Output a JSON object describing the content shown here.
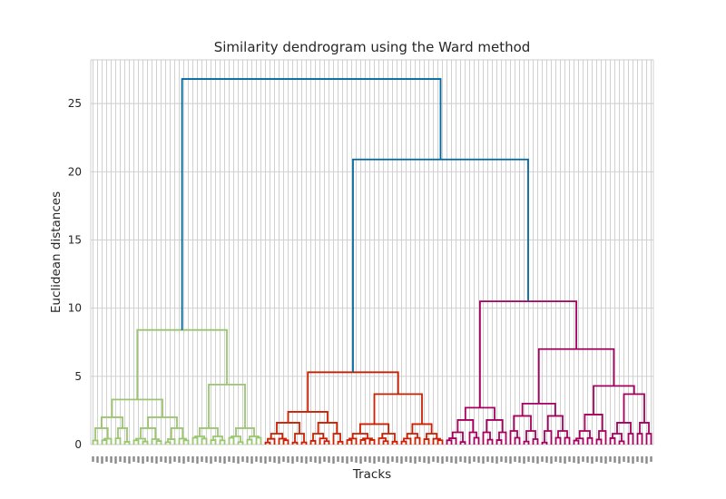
{
  "chart_data": {
    "type": "dendrogram",
    "title": "Similarity dendrogram using the Ward method",
    "xlabel": "Tracks",
    "ylabel": "Euclidean distances",
    "ylim": [
      0,
      28.2
    ],
    "yticks": [
      0,
      5,
      10,
      15,
      20,
      25
    ],
    "grid": true,
    "leaf_count": 124,
    "colors": {
      "green": "#99c66f",
      "red": "#cc1f00",
      "magenta": "#a5005f",
      "blue": "#00689f"
    },
    "clusters": [
      {
        "color": "green",
        "leaves": 38,
        "structure": [
          [
            [
              [
                2,
                2
              ],
              [
                1,
                3
              ]
            ],
            [
              [
                2,
                2
              ],
              [
                2,
                1
              ]
            ]
          ],
          [
            [
              2,
              [
                1,
                2
              ]
            ],
            [
              [
                2,
                2
              ],
              [
                2,
                [
                  2,
                  2
                ]
              ]
            ]
          ]
        ],
        "heights": [
          [
            [
              [
                2.0,
                [
                  0.6,
                  0.4
                ]
              ],
              [
                [
                  1.3,
                  [
                    0.8,
                    0.4
                  ]
                ],
                [
                  0.6,
                  0.3
                ]
              ]
            ],
            [
              [
                2.4,
                [
                  0.7,
                  0.5
                ]
              ],
              [
                [
                  0.8,
                  0.4
                ]
              ]
            ]
          ],
          [
            [
              4.4,
              [
                1.2,
                0.6
              ]
            ],
            [
              [
                1.3,
                [
                  0.6,
                  0.5
                ]
              ]
            ]
          ]
        ],
        "top_height": 8.4
      },
      {
        "color": "red",
        "leaves": 40,
        "top_height": 5.3
      },
      {
        "color": "magenta",
        "leaves": 46,
        "top_height": 10.5
      }
    ],
    "links": [
      {
        "join": "red+magenta",
        "height": 20.9,
        "color": "blue"
      },
      {
        "join": "green+(red+magenta)",
        "height": 26.8,
        "color": "blue"
      }
    ]
  }
}
